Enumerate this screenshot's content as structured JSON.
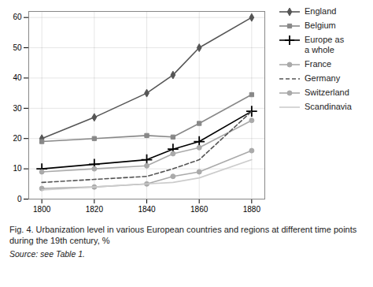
{
  "chart_data": {
    "type": "line",
    "caption": "Fig. 4. Urbanization level in various European countries and regions at different time points during the 19th century, %",
    "source": "Source: see Table 1.",
    "x": [
      1800,
      1820,
      1840,
      1850,
      1860,
      1880
    ],
    "series": [
      {
        "name": "England",
        "color": "#555555",
        "marker": "diamond",
        "line_style": "solid",
        "values": [
          20,
          27,
          35,
          41,
          50,
          60
        ]
      },
      {
        "name": "Belgium",
        "color": "#888888",
        "marker": "square",
        "line_style": "solid",
        "values": [
          19,
          20,
          21,
          20.5,
          25,
          34.5
        ]
      },
      {
        "name": "Europe as\na whole",
        "color": "#000000",
        "marker": "plus",
        "line_style": "solid",
        "values": [
          10,
          11.5,
          13,
          16.5,
          19,
          29
        ]
      },
      {
        "name": "France",
        "color": "#aaaaaa",
        "marker": "circle",
        "line_style": "solid",
        "values": [
          9,
          10,
          11,
          15,
          17,
          26
        ]
      },
      {
        "name": "Germany",
        "color": "#555555",
        "marker": "none",
        "line_style": "dashed",
        "values": [
          5.5,
          6.5,
          7.5,
          10,
          13,
          29
        ]
      },
      {
        "name": "Switzerland",
        "color": "#aaaaaa",
        "marker": "circle",
        "line_style": "solid",
        "values": [
          3.5,
          4,
          5,
          7.5,
          9,
          16
        ]
      },
      {
        "name": "Scandinavia",
        "color": "#cccccc",
        "marker": "none",
        "line_style": "solid",
        "values": [
          3,
          4,
          5,
          5.5,
          7,
          13
        ]
      }
    ],
    "xlim": [
      1795,
      1885
    ],
    "ylim": [
      0,
      62
    ],
    "xticks": [
      1800,
      1820,
      1840,
      1860,
      1880
    ],
    "yticks": [
      0,
      10,
      20,
      30,
      40,
      50,
      60
    ],
    "grid": true,
    "legend": "right"
  }
}
